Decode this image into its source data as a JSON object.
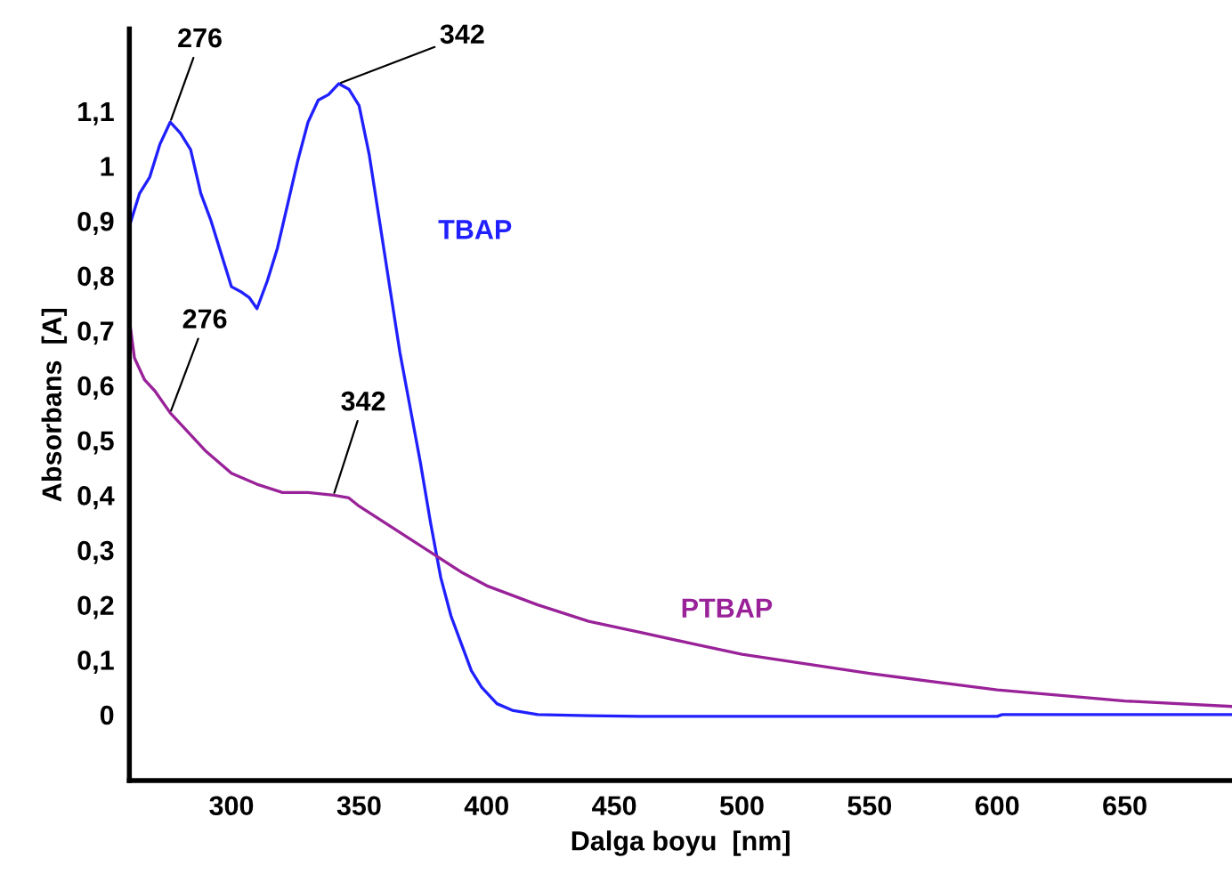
{
  "chart_data": {
    "type": "line",
    "xlabel": "Dalga boyu  [nm]",
    "ylabel": "Absorbans  [A]",
    "xlim": [
      260,
      692
    ],
    "ylim": [
      -0.12,
      1.25
    ],
    "xticks": [
      300,
      350,
      400,
      450,
      500,
      550,
      600,
      650
    ],
    "yticks": [
      0,
      {
        "value": 0.1,
        "label": "0,1"
      },
      {
        "value": 0.2,
        "label": "0,2"
      },
      {
        "value": 0.3,
        "label": "0,3"
      },
      {
        "value": 0.4,
        "label": "0,4"
      },
      {
        "value": 0.5,
        "label": "0,5"
      },
      {
        "value": 0.6,
        "label": "0,6"
      },
      {
        "value": 0.7,
        "label": "0,7"
      },
      {
        "value": 0.8,
        "label": "0,8"
      },
      {
        "value": 0.9,
        "label": "0,9"
      },
      1,
      {
        "value": 1.1,
        "label": "1,1"
      }
    ],
    "grid": false,
    "legend": false,
    "marker": "none",
    "line_style": "solid",
    "series": [
      {
        "name": "TBAP",
        "color": "#2020ff",
        "x": [
          260,
          264,
          268,
          272,
          276,
          280,
          284,
          288,
          292,
          296,
          300,
          304,
          307,
          310,
          314,
          318,
          322,
          326,
          330,
          334,
          338,
          342,
          346,
          350,
          354,
          358,
          362,
          366,
          370,
          374,
          378,
          382,
          386,
          390,
          394,
          398,
          404,
          410,
          420,
          440,
          460,
          500,
          600,
          602,
          692
        ],
        "values": [
          0.89,
          0.95,
          0.98,
          1.04,
          1.08,
          1.06,
          1.03,
          0.95,
          0.9,
          0.84,
          0.78,
          0.77,
          0.76,
          0.74,
          0.79,
          0.85,
          0.93,
          1.01,
          1.08,
          1.12,
          1.13,
          1.15,
          1.14,
          1.11,
          1.02,
          0.9,
          0.78,
          0.66,
          0.56,
          0.46,
          0.35,
          0.25,
          0.18,
          0.13,
          0.08,
          0.05,
          0.02,
          0.008,
          0.0,
          -0.002,
          -0.003,
          -0.003,
          -0.003,
          0.0,
          0.0
        ]
      },
      {
        "name": "PTBAP",
        "color": "#992299",
        "x": [
          260,
          262,
          266,
          270,
          276,
          282,
          290,
          300,
          310,
          320,
          330,
          340,
          346,
          350,
          360,
          370,
          380,
          390,
          400,
          420,
          440,
          460,
          480,
          500,
          550,
          600,
          650,
          692
        ],
        "values": [
          0.72,
          0.65,
          0.61,
          0.59,
          0.55,
          0.52,
          0.48,
          0.44,
          0.42,
          0.405,
          0.405,
          0.4,
          0.395,
          0.38,
          0.35,
          0.32,
          0.29,
          0.26,
          0.235,
          0.2,
          0.17,
          0.15,
          0.13,
          0.11,
          0.075,
          0.045,
          0.025,
          0.015
        ]
      }
    ],
    "annotations": [
      {
        "text": "276",
        "x": 276,
        "y": 1.08
      },
      {
        "text": "342",
        "x": 342,
        "y": 1.15
      },
      {
        "text": "276",
        "x": 276,
        "y": 0.55
      },
      {
        "text": "342",
        "x": 340,
        "y": 0.4
      }
    ]
  }
}
